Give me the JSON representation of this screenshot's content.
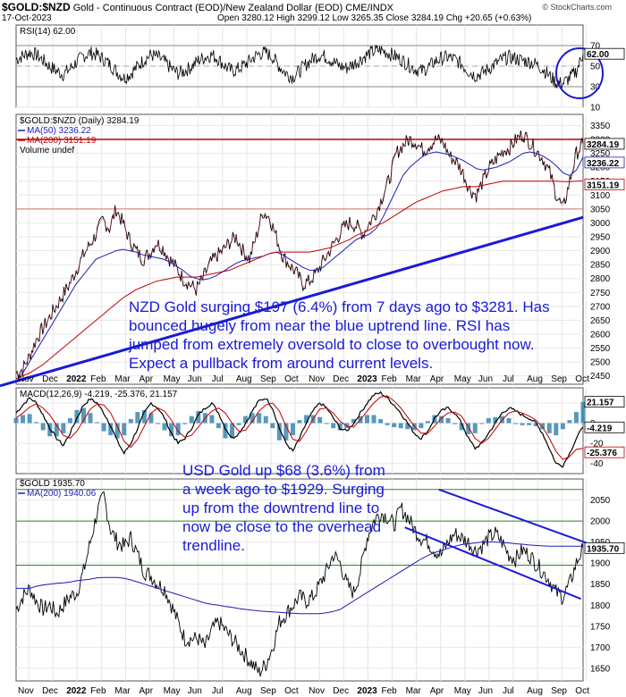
{
  "header": {
    "symbol": "$GOLD:$NZD",
    "description": "Gold - Continuous Contract (EOD)/New Zealand Dollar (EOD)",
    "exchange": "CME/INDX",
    "date": "17-Oct-2023",
    "ohlc": "Open 3280.12 High 3299.12 Low 3265.35 Close 3284.19 Chg +20.65 (+0.63%)",
    "watermark": "© StockCharts.com"
  },
  "colors": {
    "price": "#000000",
    "ma50": "#1d1db8",
    "ma200": "#c00000",
    "trend": "#1a1ad6",
    "macd_hist": "#3a86b0",
    "hline": "#2a8a2a"
  },
  "chart_data": [
    {
      "type": "line",
      "panel": "rsi",
      "legend": "RSI(14) 62.00",
      "ylim": [
        10,
        90
      ],
      "ticks": [
        "70",
        "50",
        "30",
        "10"
      ],
      "last_value_label": "62.00",
      "levels": [
        70,
        30
      ],
      "annotation": "circle around recent oversold-to-high RSI move"
    },
    {
      "type": "line",
      "panel": "nzd_gold",
      "legend": [
        "$GOLD:$NZD (Daily) 3284.19",
        "MA(50) 3236.22",
        "MA(200) 3151.19",
        "Volume undef"
      ],
      "ylim": [
        2420,
        3390
      ],
      "ticks": [
        "3350",
        "3300",
        "3250",
        "3200",
        "3150",
        "3100",
        "3050",
        "3000",
        "2950",
        "2900",
        "2850",
        "2800",
        "2750",
        "2700",
        "2650",
        "2600",
        "2550",
        "2500",
        "2450"
      ],
      "last_labels": [
        "3284.19",
        "3236.22",
        "3151.19"
      ],
      "price": [
        2460,
        2475,
        2520,
        2580,
        2620,
        2660,
        2700,
        2740,
        2780,
        2830,
        2880,
        2920,
        2960,
        3010,
        2980,
        3050,
        3000,
        2940,
        2900,
        2870,
        2890,
        2930,
        2910,
        2870,
        2840,
        2800,
        2780,
        2760,
        2800,
        2850,
        2880,
        2900,
        2930,
        2950,
        2900,
        2870,
        2950,
        3040,
        3020,
        2950,
        2880,
        2850,
        2820,
        2780,
        2790,
        2820,
        2860,
        2900,
        2940,
        2980,
        3000,
        2990,
        2960,
        3000,
        3040,
        3100,
        3160,
        3250,
        3280,
        3300,
        3290,
        3260,
        3280,
        3300,
        3290,
        3240,
        3220,
        3180,
        3120,
        3100,
        3150,
        3200,
        3230,
        3260,
        3270,
        3300,
        3320,
        3290,
        3260,
        3230,
        3180,
        3100,
        3050,
        3150,
        3250,
        3284
      ],
      "ma50": [
        2430,
        2460,
        2500,
        2540,
        2580,
        2620,
        2660,
        2700,
        2740,
        2780,
        2810,
        2840,
        2870,
        2880,
        2890,
        2900,
        2905,
        2900,
        2895,
        2885,
        2880,
        2875,
        2870,
        2860,
        2845,
        2830,
        2810,
        2800,
        2795,
        2800,
        2810,
        2825,
        2840,
        2855,
        2865,
        2870,
        2875,
        2880,
        2890,
        2895,
        2885,
        2870,
        2855,
        2840,
        2830,
        2830,
        2840,
        2860,
        2880,
        2900,
        2920,
        2940,
        2950,
        2960,
        2980,
        3020,
        3070,
        3120,
        3170,
        3200,
        3220,
        3240,
        3250,
        3255,
        3250,
        3245,
        3235,
        3225,
        3210,
        3195,
        3190,
        3195,
        3200,
        3210,
        3220,
        3235,
        3250,
        3255,
        3250,
        3240,
        3225,
        3205,
        3180,
        3170,
        3190,
        3236
      ],
      "ma200": [
        2440,
        2450,
        2460,
        2475,
        2490,
        2510,
        2530,
        2550,
        2570,
        2590,
        2610,
        2630,
        2650,
        2670,
        2690,
        2710,
        2730,
        2745,
        2760,
        2770,
        2780,
        2790,
        2795,
        2800,
        2805,
        2805,
        2805,
        2805,
        2810,
        2815,
        2820,
        2825,
        2830,
        2840,
        2850,
        2860,
        2870,
        2880,
        2890,
        2895,
        2895,
        2895,
        2895,
        2895,
        2895,
        2900,
        2905,
        2910,
        2920,
        2930,
        2940,
        2955,
        2965,
        2975,
        2990,
        3000,
        3015,
        3030,
        3045,
        3060,
        3075,
        3085,
        3095,
        3105,
        3115,
        3120,
        3125,
        3130,
        3130,
        3130,
        3135,
        3140,
        3145,
        3150,
        3150,
        3150,
        3150,
        3150,
        3150,
        3150,
        3150,
        3150,
        3148,
        3148,
        3150,
        3151
      ],
      "hlines": [
        3300,
        3050
      ],
      "trendline": [
        [
          0,
          2440
        ],
        [
          85,
          3020
        ]
      ],
      "annotation": "NZD Gold surging $197 (6.4%) from 7 days ago to $3281. Has bounced hugely from near the blue uptrend line. RSI has jumped from extremely oversold to close to overbought now. Expect a pullback from around current levels."
    },
    {
      "type": "line",
      "panel": "macd",
      "legend": "MACD(12,26,9) -4.219, -25.376, 21.157",
      "ylim": [
        -50,
        35
      ],
      "ticks": [
        "20",
        "0",
        "-20",
        "-40"
      ],
      "last_labels": [
        "21.157",
        "-4.219",
        "-25.376"
      ],
      "macd": [
        10,
        18,
        25,
        20,
        8,
        -5,
        -15,
        -22,
        -10,
        5,
        18,
        24,
        20,
        10,
        -2,
        -18,
        -30,
        -20,
        -5,
        10,
        20,
        15,
        5,
        -10,
        -20,
        -15,
        -5,
        8,
        15,
        20,
        10,
        -5,
        -15,
        -10,
        0,
        12,
        22,
        25,
        15,
        -5,
        -20,
        -28,
        -15,
        0,
        12,
        20,
        15,
        5,
        -5,
        -8,
        0,
        10,
        20,
        28,
        30,
        25,
        18,
        10,
        0,
        -10,
        -15,
        -8,
        5,
        12,
        15,
        10,
        0,
        -15,
        -25,
        -20,
        -10,
        0,
        10,
        15,
        12,
        8,
        5,
        0,
        -10,
        -25,
        -40,
        -42,
        -30,
        -15,
        -4
      ],
      "signal": [
        5,
        10,
        16,
        19,
        15,
        8,
        -2,
        -12,
        -15,
        -8,
        3,
        14,
        19,
        18,
        10,
        -3,
        -18,
        -24,
        -16,
        -3,
        10,
        15,
        12,
        3,
        -8,
        -14,
        -12,
        -4,
        5,
        12,
        15,
        10,
        0,
        -8,
        -7,
        2,
        12,
        18,
        20,
        12,
        -3,
        -16,
        -18,
        -8,
        4,
        14,
        15,
        10,
        2,
        -3,
        -4,
        3,
        12,
        20,
        26,
        27,
        22,
        15,
        6,
        -3,
        -10,
        -10,
        -3,
        5,
        10,
        11,
        7,
        -4,
        -15,
        -20,
        -15,
        -6,
        3,
        10,
        12,
        10,
        7,
        3,
        -4,
        -15,
        -28,
        -36,
        -33,
        -26,
        -25
      ],
      "hist_last": 21.157
    },
    {
      "type": "line",
      "panel": "usd_gold",
      "legend": [
        "$GOLD 1935.70",
        "MA(200) 1940.06"
      ],
      "ylim": [
        1620,
        2100
      ],
      "ticks": [
        "2050",
        "2000",
        "1950",
        "1900",
        "1850",
        "1800",
        "1750",
        "1700",
        "1650"
      ],
      "last_labels": [
        "1935.70"
      ],
      "price": [
        1790,
        1820,
        1840,
        1810,
        1790,
        1800,
        1780,
        1800,
        1820,
        1830,
        1880,
        1950,
        2020,
        2060,
        1980,
        1950,
        1940,
        1960,
        1920,
        1880,
        1870,
        1850,
        1840,
        1800,
        1760,
        1720,
        1720,
        1720,
        1700,
        1740,
        1760,
        1740,
        1720,
        1700,
        1680,
        1660,
        1640,
        1660,
        1700,
        1760,
        1780,
        1800,
        1820,
        1810,
        1820,
        1850,
        1880,
        1920,
        1900,
        1850,
        1830,
        1880,
        1960,
        2000,
        2020,
        2010,
        1990,
        2030,
        2010,
        1980,
        1960,
        1950,
        1930,
        1920,
        1950,
        1970,
        1960,
        1950,
        1930,
        1940,
        1960,
        1970,
        1950,
        1920,
        1910,
        1930,
        1920,
        1900,
        1880,
        1860,
        1830,
        1820,
        1850,
        1900,
        1936
      ],
      "ma200": [
        1840,
        1840,
        1840,
        1845,
        1848,
        1850,
        1852,
        1853,
        1855,
        1858,
        1860,
        1862,
        1865,
        1866,
        1866,
        1866,
        1864,
        1860,
        1855,
        1850,
        1845,
        1840,
        1835,
        1830,
        1825,
        1820,
        1815,
        1810,
        1805,
        1802,
        1800,
        1797,
        1795,
        1792,
        1790,
        1788,
        1786,
        1785,
        1784,
        1783,
        1782,
        1781,
        1780,
        1780,
        1780,
        1780,
        1782,
        1785,
        1790,
        1800,
        1810,
        1820,
        1830,
        1840,
        1850,
        1860,
        1870,
        1880,
        1890,
        1900,
        1910,
        1918,
        1925,
        1930,
        1935,
        1940,
        1944,
        1946,
        1948,
        1950,
        1950,
        1950,
        1949,
        1948,
        1946,
        1945,
        1943,
        1942,
        1941,
        1940,
        1940,
        1940,
        1940,
        1940,
        1940
      ],
      "hlines": [
        2075,
        2000,
        1895
      ],
      "channel": {
        "upper": [
          [
            56,
            2075
          ],
          [
            85,
            1945
          ]
        ],
        "lower": [
          [
            56,
            1985
          ],
          [
            85,
            1815
          ]
        ]
      },
      "annotation": "USD Gold up $68 (3.6%) from a week ago to $1929. Surging up from the downtrend line to now be close to the overhead trendline."
    }
  ],
  "axis": {
    "months": [
      "Nov",
      "Dec",
      "2022",
      "Feb",
      "Mar",
      "Apr",
      "May",
      "Jun",
      "Jul",
      "Aug",
      "Sep",
      "Oct",
      "Nov",
      "Dec",
      "2023",
      "Feb",
      "Mar",
      "Apr",
      "May",
      "Jun",
      "Jul",
      "Aug",
      "Sep",
      "Oct"
    ]
  }
}
